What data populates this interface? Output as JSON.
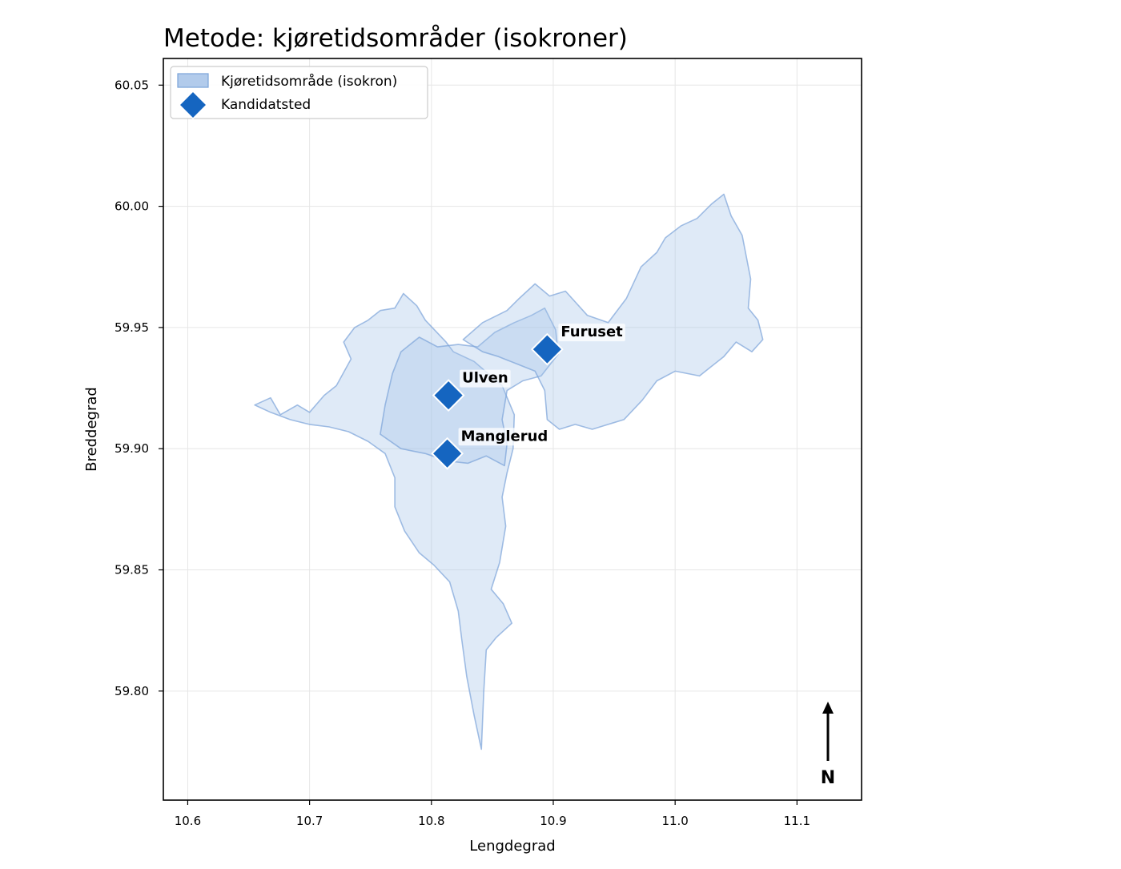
{
  "chart_data": {
    "type": "scatter",
    "title": "Metode: kjøretidsområder (isokroner)",
    "xlabel": "Lengdegrad",
    "ylabel": "Breddegrad",
    "xlim": [
      10.58,
      11.153
    ],
    "ylim": [
      59.755,
      60.061
    ],
    "xticks": [
      10.6,
      10.7,
      10.8,
      10.9,
      11.0,
      11.1
    ],
    "xtick_labels": [
      "10.6",
      "10.7",
      "10.8",
      "10.9",
      "11.0",
      "11.1"
    ],
    "yticks": [
      59.8,
      59.85,
      59.9,
      59.95,
      60.0,
      60.05
    ],
    "ytick_labels": [
      "59.80",
      "59.85",
      "59.90",
      "59.95",
      "60.00",
      "60.05"
    ],
    "grid": true,
    "legend_position": "top-left",
    "legend": [
      {
        "label": "Kjøretidsområde (isokron)",
        "kind": "patch"
      },
      {
        "label": "Kandidatsted",
        "kind": "marker"
      }
    ],
    "colors": {
      "isochrone_fill": "#a4c2e8",
      "isochrone_edge": "#7aa3d8",
      "marker": "#1565c0",
      "marker_edge": "#ffffff"
    },
    "sites": [
      {
        "name": "Furuset",
        "lon": 10.895,
        "lat": 59.941
      },
      {
        "name": "Ulven",
        "lon": 10.814,
        "lat": 59.922
      },
      {
        "name": "Manglerud",
        "lon": 10.813,
        "lat": 59.898
      }
    ],
    "isochrones": [
      {
        "site": "Manglerud",
        "polygon": [
          [
            10.655,
            59.918
          ],
          [
            10.668,
            59.921
          ],
          [
            10.676,
            59.914
          ],
          [
            10.69,
            59.918
          ],
          [
            10.7,
            59.915
          ],
          [
            10.712,
            59.922
          ],
          [
            10.722,
            59.926
          ],
          [
            10.734,
            59.937
          ],
          [
            10.728,
            59.944
          ],
          [
            10.737,
            59.95
          ],
          [
            10.748,
            59.953
          ],
          [
            10.758,
            59.957
          ],
          [
            10.77,
            59.958
          ],
          [
            10.777,
            59.964
          ],
          [
            10.788,
            59.959
          ],
          [
            10.795,
            59.953
          ],
          [
            10.812,
            59.944
          ],
          [
            10.818,
            59.94
          ],
          [
            10.835,
            59.936
          ],
          [
            10.858,
            59.926
          ],
          [
            10.868,
            59.914
          ],
          [
            10.867,
            59.9
          ],
          [
            10.862,
            59.89
          ],
          [
            10.858,
            59.88
          ],
          [
            10.861,
            59.868
          ],
          [
            10.856,
            59.853
          ],
          [
            10.849,
            59.842
          ],
          [
            10.859,
            59.836
          ],
          [
            10.866,
            59.828
          ],
          [
            10.853,
            59.822
          ],
          [
            10.845,
            59.817
          ],
          [
            10.843,
            59.8
          ],
          [
            10.841,
            59.776
          ],
          [
            10.835,
            59.79
          ],
          [
            10.829,
            59.806
          ],
          [
            10.825,
            59.821
          ],
          [
            10.822,
            59.833
          ],
          [
            10.815,
            59.845
          ],
          [
            10.802,
            59.852
          ],
          [
            10.79,
            59.857
          ],
          [
            10.778,
            59.866
          ],
          [
            10.77,
            59.876
          ],
          [
            10.77,
            59.888
          ],
          [
            10.762,
            59.898
          ],
          [
            10.748,
            59.903
          ],
          [
            10.732,
            59.907
          ],
          [
            10.716,
            59.909
          ],
          [
            10.7,
            59.91
          ],
          [
            10.684,
            59.912
          ],
          [
            10.668,
            59.915
          ]
        ]
      },
      {
        "site": "Ulven",
        "polygon": [
          [
            10.758,
            59.906
          ],
          [
            10.762,
            59.918
          ],
          [
            10.768,
            59.931
          ],
          [
            10.775,
            59.94
          ],
          [
            10.79,
            59.946
          ],
          [
            10.805,
            59.942
          ],
          [
            10.822,
            59.943
          ],
          [
            10.838,
            59.942
          ],
          [
            10.852,
            59.948
          ],
          [
            10.868,
            59.952
          ],
          [
            10.882,
            59.955
          ],
          [
            10.893,
            59.958
          ],
          [
            10.902,
            59.949
          ],
          [
            10.904,
            59.939
          ],
          [
            10.89,
            59.93
          ],
          [
            10.875,
            59.928
          ],
          [
            10.862,
            59.924
          ],
          [
            10.858,
            59.912
          ],
          [
            10.862,
            59.902
          ],
          [
            10.86,
            59.893
          ],
          [
            10.845,
            59.897
          ],
          [
            10.83,
            59.894
          ],
          [
            10.812,
            59.895
          ],
          [
            10.795,
            59.898
          ],
          [
            10.775,
            59.9
          ]
        ]
      },
      {
        "site": "Furuset",
        "polygon": [
          [
            10.826,
            59.945
          ],
          [
            10.842,
            59.952
          ],
          [
            10.862,
            59.957
          ],
          [
            10.872,
            59.962
          ],
          [
            10.885,
            59.968
          ],
          [
            10.897,
            59.963
          ],
          [
            10.91,
            59.965
          ],
          [
            10.928,
            59.955
          ],
          [
            10.945,
            59.952
          ],
          [
            10.96,
            59.962
          ],
          [
            10.972,
            59.975
          ],
          [
            10.985,
            59.981
          ],
          [
            10.992,
            59.987
          ],
          [
            11.005,
            59.992
          ],
          [
            11.018,
            59.995
          ],
          [
            11.03,
            60.001
          ],
          [
            11.04,
            60.005
          ],
          [
            11.046,
            59.996
          ],
          [
            11.055,
            59.988
          ],
          [
            11.062,
            59.97
          ],
          [
            11.06,
            59.958
          ],
          [
            11.068,
            59.953
          ],
          [
            11.072,
            59.945
          ],
          [
            11.063,
            59.94
          ],
          [
            11.05,
            59.944
          ],
          [
            11.04,
            59.938
          ],
          [
            11.03,
            59.934
          ],
          [
            11.02,
            59.93
          ],
          [
            11.0,
            59.932
          ],
          [
            10.985,
            59.928
          ],
          [
            10.973,
            59.92
          ],
          [
            10.958,
            59.912
          ],
          [
            10.945,
            59.91
          ],
          [
            10.932,
            59.908
          ],
          [
            10.918,
            59.91
          ],
          [
            10.905,
            59.908
          ],
          [
            10.895,
            59.912
          ],
          [
            10.893,
            59.924
          ],
          [
            10.885,
            59.932
          ],
          [
            10.87,
            59.935
          ],
          [
            10.855,
            59.938
          ],
          [
            10.842,
            59.94
          ]
        ]
      }
    ]
  },
  "north_arrow": {
    "label": "N"
  }
}
